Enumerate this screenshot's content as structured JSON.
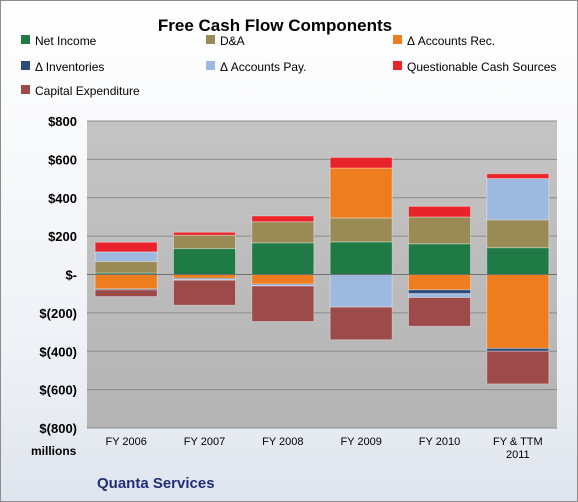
{
  "chart_data": {
    "type": "bar",
    "stacked": true,
    "title": "Free Cash Flow Components",
    "units_label": "millions",
    "company": "Quanta Services",
    "categories": [
      "FY 2006",
      "FY 2007",
      "FY 2008",
      "FY 2009",
      "FY 2010",
      "FY & TTM|2011"
    ],
    "ylim": [
      -800,
      800
    ],
    "yticks": [
      800,
      600,
      400,
      200,
      0,
      -200,
      -400,
      -600,
      -800
    ],
    "ytick_labels": [
      "$800",
      "$600",
      "$400",
      "$200",
      "$-",
      "$(200)",
      "$(400)",
      "$(600)",
      "$(800)"
    ],
    "grid": true,
    "legend_position": "top",
    "series": [
      {
        "name": "Net Income",
        "color": "#1f7a45",
        "values": [
          8,
          135,
          165,
          170,
          160,
          140
        ]
      },
      {
        "name": "D&A",
        "color": "#9a8a55",
        "values": [
          60,
          70,
          110,
          125,
          140,
          145
        ]
      },
      {
        "name": "Δ Accounts Rec.",
        "color": "#ee7d1f",
        "values": [
          -75,
          -20,
          -50,
          260,
          -80,
          -385
        ]
      },
      {
        "name": "Δ Inventories",
        "color": "#2e4a78",
        "values": [
          -5,
          -5,
          -5,
          0,
          -20,
          -15
        ]
      },
      {
        "name": "Δ Accounts Pay.",
        "color": "#9db9e0",
        "values": [
          50,
          -5,
          -5,
          -170,
          -20,
          215
        ]
      },
      {
        "name": "Questionable Cash Sources",
        "color": "#e8232a",
        "values": [
          50,
          15,
          30,
          55,
          55,
          25
        ]
      },
      {
        "name": "Capital Expenditure",
        "color": "#9c4a4a",
        "values": [
          -35,
          -130,
          -185,
          -170,
          -150,
          -170
        ]
      }
    ]
  }
}
